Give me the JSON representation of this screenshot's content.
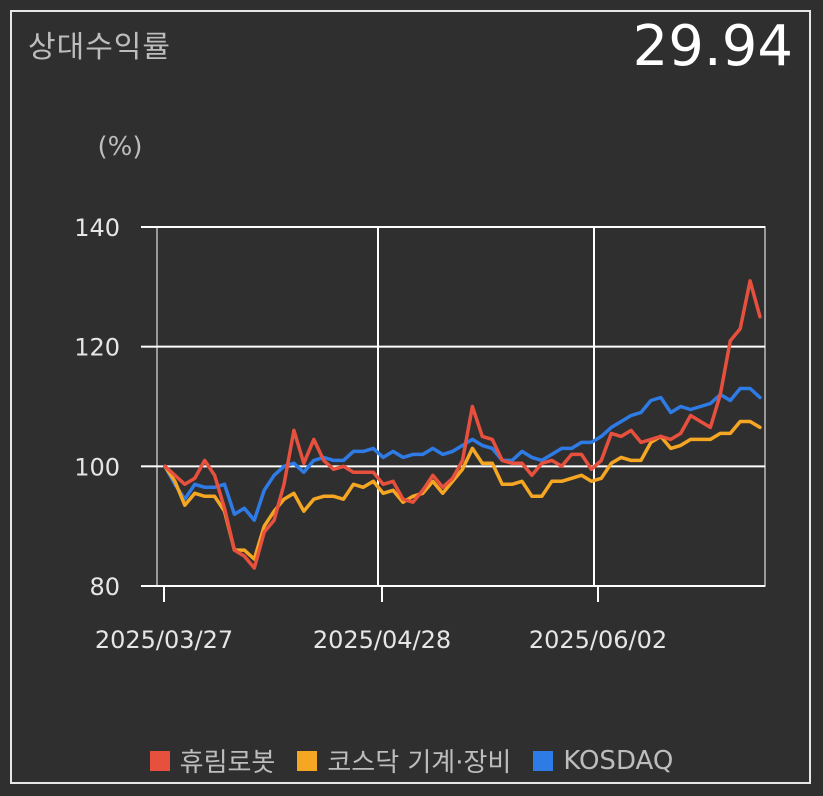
{
  "header": {
    "title": "상대수익률",
    "value": "29.94"
  },
  "chart_data": {
    "type": "line",
    "ylabel": "(%)",
    "ylim": [
      80,
      140
    ],
    "yticks": [
      80,
      100,
      120,
      140
    ],
    "x_tick_labels": [
      "2025/03/27",
      "2025/04/28",
      "2025/06/02"
    ],
    "grid": true,
    "legend_position": "bottom",
    "series": [
      {
        "name": "휴림로봇",
        "color": "#e8503e",
        "values": [
          100,
          98.5,
          97,
          98,
          101,
          98.5,
          93,
          86,
          85,
          83,
          89,
          91,
          97,
          106,
          100.5,
          104.5,
          101,
          99.5,
          100,
          99,
          99,
          99,
          97,
          97.5,
          94.5,
          94,
          96,
          98.5,
          96.5,
          98,
          101,
          110,
          105,
          104.5,
          101,
          100.5,
          100.5,
          98.5,
          100.5,
          101,
          100,
          102,
          102,
          99.5,
          101,
          105.5,
          105,
          106,
          104,
          104.5,
          105,
          104.5,
          105.5,
          108.5,
          107.5,
          106.5,
          112,
          121,
          123,
          131,
          125
        ]
      },
      {
        "name": "코스닥 기계·장비",
        "color": "#f5a623",
        "values": [
          100,
          97.5,
          93.5,
          95.5,
          95,
          95,
          92.5,
          86,
          86,
          84.5,
          90,
          92.5,
          94.5,
          95.5,
          92.5,
          94.5,
          95,
          95,
          94.5,
          97,
          96.5,
          97.5,
          95.5,
          96,
          94,
          95,
          95.5,
          97.5,
          95.5,
          97.5,
          99.5,
          103,
          100.5,
          100.5,
          97,
          97,
          97.5,
          95,
          95,
          97.5,
          97.5,
          98,
          98.5,
          97.5,
          98,
          100.5,
          101.5,
          101,
          101,
          104,
          105,
          103,
          103.5,
          104.5,
          104.5,
          104.5,
          105.5,
          105.5,
          107.5,
          107.5,
          106.5
        ]
      },
      {
        "name": "KOSDAQ",
        "color": "#2f7be6",
        "values": [
          100,
          97,
          94.5,
          97,
          96.5,
          96.5,
          97,
          92,
          93,
          91,
          96,
          98.5,
          100,
          100.5,
          99,
          101,
          101.5,
          101,
          101,
          102.5,
          102.5,
          103,
          101.5,
          102.5,
          101.5,
          102,
          102,
          103,
          102,
          102.5,
          103.5,
          104.5,
          103.5,
          103,
          101,
          101,
          102.5,
          101.5,
          101,
          102,
          103,
          103,
          104,
          104,
          105,
          106.5,
          107.5,
          108.5,
          109,
          111,
          111.5,
          109,
          110,
          109.5,
          110,
          110.5,
          112,
          111,
          113,
          113,
          111.5
        ]
      }
    ]
  }
}
